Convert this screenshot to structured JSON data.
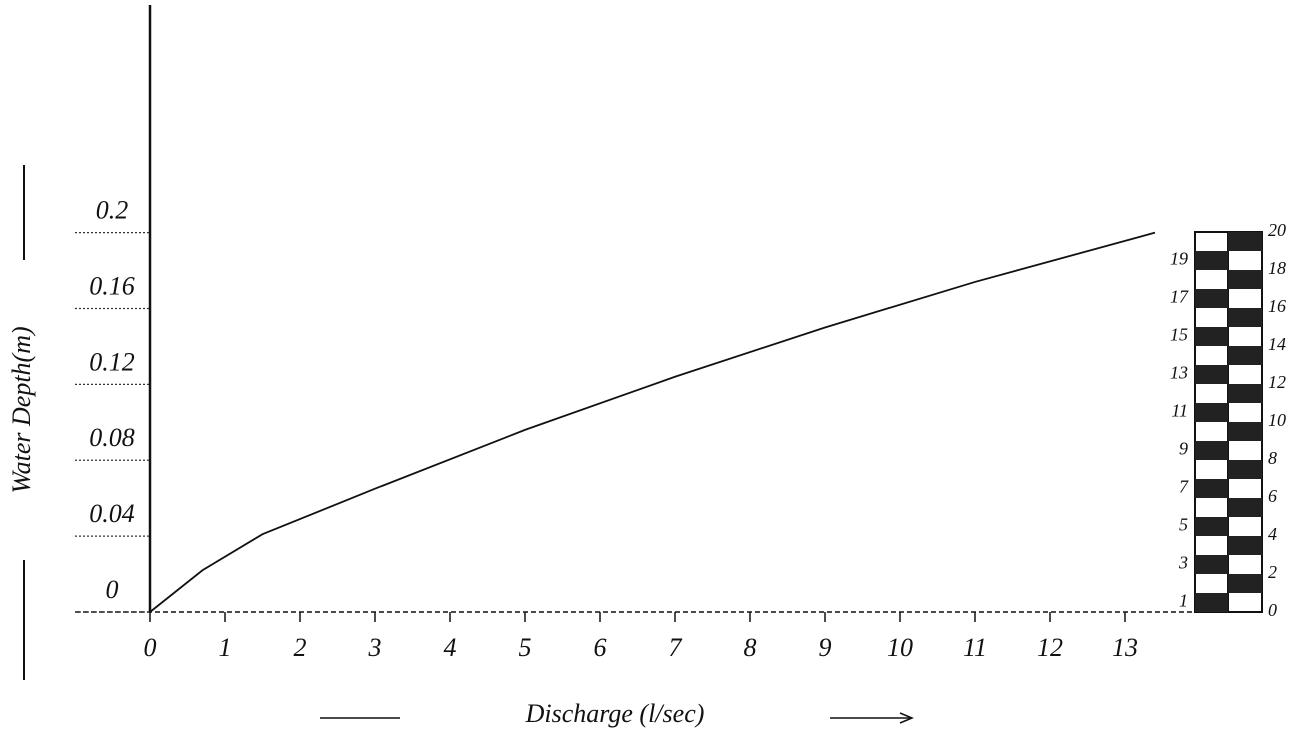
{
  "chart_data": {
    "type": "line",
    "y_label": "Water Depth(m)",
    "x_label": "Discharge (l/sec)",
    "x": [
      0,
      0.7,
      1.5,
      3,
      5,
      7,
      9,
      11,
      13.4
    ],
    "values": [
      0,
      0.022,
      0.041,
      0.065,
      0.096,
      0.124,
      0.15,
      0.174,
      0.2
    ],
    "color": "#111111",
    "xlim": [
      0,
      14
    ],
    "ylim": [
      0,
      0.32
    ],
    "xticks": [
      0,
      1,
      2,
      3,
      4,
      5,
      6,
      7,
      8,
      9,
      10,
      11,
      12,
      13
    ],
    "yticks": [
      0,
      0.04,
      0.08,
      0.12,
      0.16,
      0.2
    ],
    "grid": true,
    "gauge": {
      "left_labels": [
        19,
        17,
        15,
        13,
        11,
        9,
        7,
        5,
        3,
        1
      ],
      "right_labels": [
        20,
        18,
        16,
        14,
        12,
        10,
        8,
        6,
        4,
        2,
        0
      ],
      "range": [
        0,
        20
      ]
    }
  }
}
